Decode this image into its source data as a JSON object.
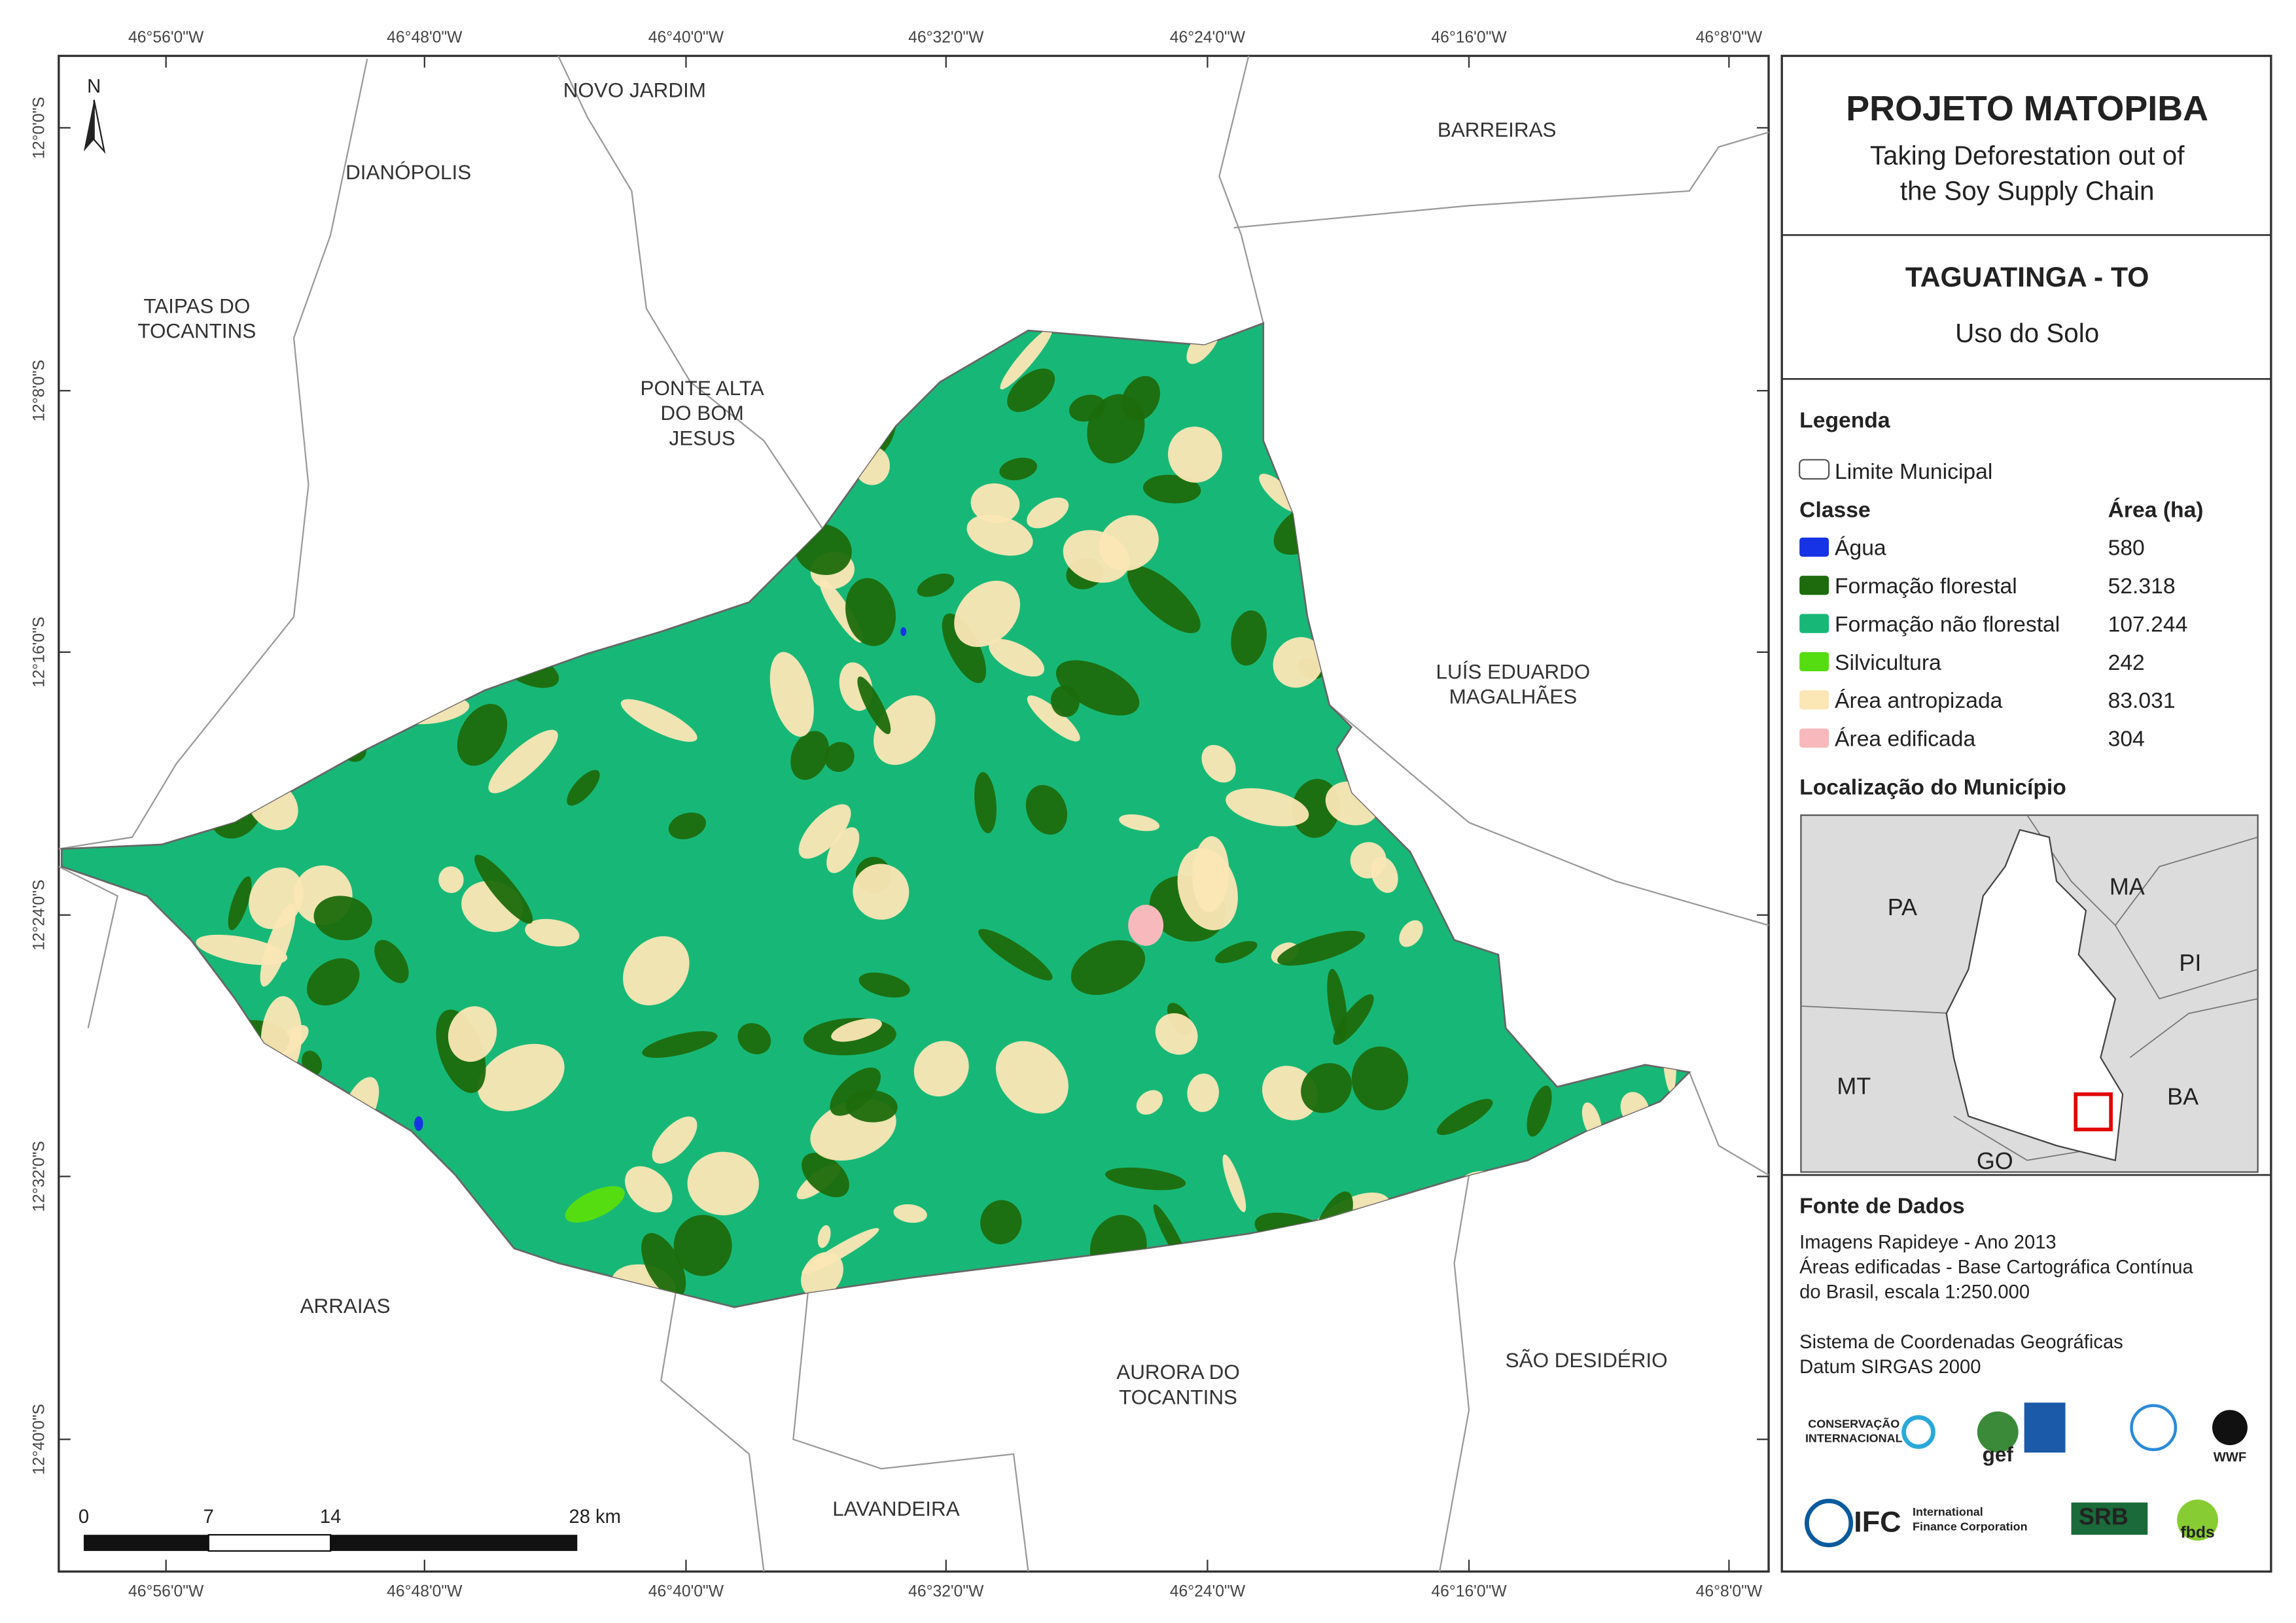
{
  "header": {
    "title": "PROJETO MATOPIBA",
    "subtitle": [
      "Taking Deforestation out of",
      "the Soy Supply Chain"
    ]
  },
  "municipality": {
    "name": "TAGUATINGA - TO",
    "theme": "Uso do Solo"
  },
  "legend": {
    "heading": "Legenda",
    "boundary": "Limite Municipal",
    "class_heading": "Classe",
    "area_heading": "Área (ha)",
    "classes": [
      {
        "name": "Água",
        "area": "580",
        "color": "#1733e6"
      },
      {
        "name": "Formação florestal",
        "area": "52.318",
        "color": "#1d6b0c"
      },
      {
        "name": "Formação não florestal",
        "area": "107.244",
        "color": "#17b877"
      },
      {
        "name": "Silvicultura",
        "area": "242",
        "color": "#55dd11"
      },
      {
        "name": "Área antropizada",
        "area": "83.031",
        "color": "#fbe6b5"
      },
      {
        "name": "Área edificada",
        "area": "304",
        "color": "#f7b9bc"
      }
    ]
  },
  "location": {
    "heading": "Localização do Município",
    "states": [
      "PA",
      "MA",
      "PI",
      "MT",
      "BA",
      "GO"
    ]
  },
  "sources": {
    "heading": "Fonte de Dados",
    "lines": [
      "Imagens Rapideye - Ano 2013",
      "Áreas edificadas - Base Cartográfica Contínua",
      "do Brasil, escala 1:250.000",
      "",
      "Sistema de Coordenadas Geográficas",
      "Datum SIRGAS 2000"
    ]
  },
  "grid": {
    "longitudes": [
      "46°56'0\"W",
      "46°48'0\"W",
      "46°40'0\"W",
      "46°32'0\"W",
      "46°24'0\"W",
      "46°16'0\"W",
      "46°8'0\"W"
    ],
    "latitudes": [
      "12°0'0\"S",
      "12°8'0\"S",
      "12°16'0\"S",
      "12°24'0\"S",
      "12°32'0\"S",
      "12°40'0\"S"
    ]
  },
  "places": [
    {
      "lines": [
        "NOVO JARDIM"
      ]
    },
    {
      "lines": [
        "BARREIRAS"
      ]
    },
    {
      "lines": [
        "DIANÓPOLIS"
      ]
    },
    {
      "lines": [
        "TAIPAS DO",
        "TOCANTINS"
      ]
    },
    {
      "lines": [
        "PONTE ALTA",
        "DO BOM",
        "JESUS"
      ]
    },
    {
      "lines": [
        "LUÍS EDUARDO",
        "MAGALHÃES"
      ]
    },
    {
      "lines": [
        "ARRAIAS"
      ]
    },
    {
      "lines": [
        "AURORA DO",
        "TOCANTINS"
      ]
    },
    {
      "lines": [
        "SÃO DESIDÉRIO"
      ]
    },
    {
      "lines": [
        "LAVANDEIRA"
      ]
    }
  ],
  "north": "N",
  "scale_bar": {
    "labels": [
      "0",
      "7",
      "14",
      "28 km"
    ]
  },
  "logos": [
    "CONSERVAÇÃO",
    "INTERNACIONAL",
    "gef",
    "WWF",
    "IFC",
    "International",
    "Finance Corporation",
    "SRB",
    "fbds"
  ]
}
